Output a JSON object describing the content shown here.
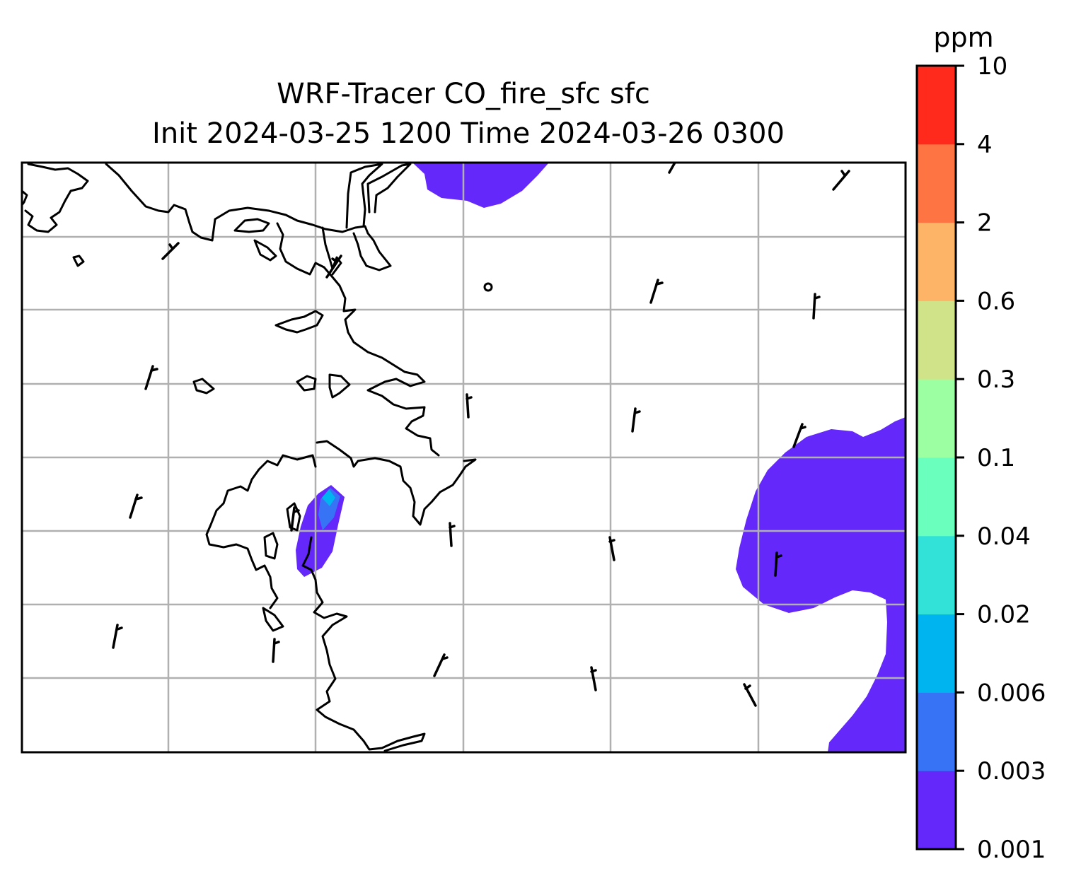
{
  "figure": {
    "title_line1": "WRF-Tracer CO_fire_sfc sfc",
    "title_line2": "Init 2024-03-25 1200 Time 2024-03-26 0300"
  },
  "colorbar": {
    "unit": "ppm",
    "levels": [
      "0.001",
      "0.003",
      "0.006",
      "0.02",
      "0.04",
      "0.1",
      "0.3",
      "0.6",
      "2",
      "4",
      "10"
    ],
    "colors": [
      "#6428fa",
      "#3673f5",
      "#00b4f0",
      "#32e1d7",
      "#6affbd",
      "#9cffa1",
      "#d1e389",
      "#feb466",
      "#ff7443",
      "#ff2a1b"
    ]
  },
  "plume_colors": {
    "level1": "#6428fa",
    "level2": "#3673f5",
    "level3": "#00b4f0"
  }
}
